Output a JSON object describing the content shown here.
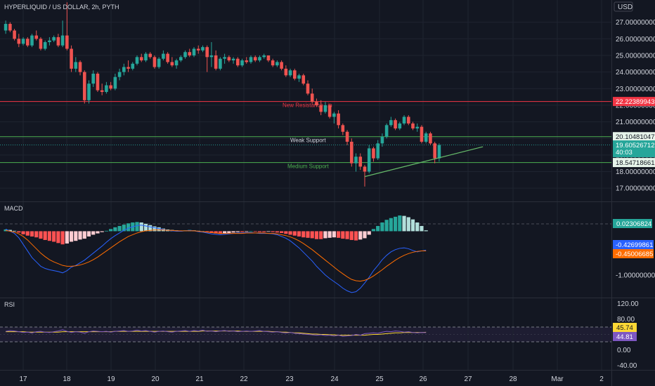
{
  "header": {
    "symbol_title": "HYPERLIQUID / US DOLLAR, 2h, PYTH",
    "currency": "USD"
  },
  "colors": {
    "background": "#131722",
    "up": "#26a69a",
    "down": "#ef5350",
    "grid": "#1f2430",
    "resistance": "#f23645",
    "support": "#4caf50",
    "trendline": "#66bb6a",
    "macd_line": "#2962ff",
    "signal_line": "#ff6d00",
    "rsi_line": "#7e57c2",
    "rsi_ma": "#fdd835"
  },
  "price_axis": {
    "ticks": [
      "27.00000000",
      "26.00000000",
      "25.00000000",
      "24.00000000",
      "23.00000000",
      "22.00000000",
      "21.00000000",
      "20.00000000",
      "19.00000000",
      "18.00000000",
      "17.00000000"
    ],
    "range": [
      16.5,
      28.0
    ]
  },
  "levels": {
    "resistance": {
      "label": "New Resistance Lin",
      "value": 22.22389943,
      "tag": "22.22389943"
    },
    "weak_support": {
      "label": "Weak Support",
      "value": 20.10481047,
      "tag": "20.10481047"
    },
    "medium_support": {
      "label": "Medium Support",
      "value": 18.54718661,
      "tag": "18.54718661"
    },
    "last_price": {
      "value": 19.60526712,
      "tag": "19.60526712",
      "countdown": "40:03"
    }
  },
  "macd": {
    "title": "MACD",
    "ticks": [
      "-1.00000000"
    ],
    "histogram_tag": "0.02306824",
    "macd_tag": "-0.42699861",
    "signal_tag": "-0.45006685",
    "range": [
      -1.45,
      0.6
    ]
  },
  "rsi": {
    "title": "RSI",
    "ticks": [
      "120.00",
      "80.00",
      "0.00",
      "-40.00"
    ],
    "ma_tag": "45.74",
    "rsi_tag": "44.81",
    "range": [
      -45,
      125
    ],
    "bands": [
      70,
      30
    ]
  },
  "time_axis": {
    "labels": [
      "17",
      "18",
      "19",
      "20",
      "21",
      "22",
      "23",
      "24",
      "25",
      "26",
      "27",
      "28",
      "Mar",
      "2"
    ]
  },
  "chart_data": {
    "type": "candlestick",
    "title": "HYPERLIQUID / US DOLLAR, 2h, PYTH",
    "y_unit": "USD",
    "x_dates": [
      "17",
      "18",
      "19",
      "20",
      "21",
      "22",
      "23",
      "24",
      "25",
      "26",
      "27",
      "28",
      "Mar",
      "2"
    ],
    "ylim": [
      16.5,
      28.0
    ],
    "candles": [
      {
        "o": 26.5,
        "h": 27.1,
        "l": 26.3,
        "c": 26.9
      },
      {
        "o": 26.9,
        "h": 27.0,
        "l": 26.4,
        "c": 26.5
      },
      {
        "o": 26.5,
        "h": 26.6,
        "l": 25.9,
        "c": 26.0
      },
      {
        "o": 26.0,
        "h": 26.3,
        "l": 25.5,
        "c": 25.7
      },
      {
        "o": 25.7,
        "h": 26.1,
        "l": 25.6,
        "c": 26.0
      },
      {
        "o": 26.0,
        "h": 26.1,
        "l": 25.5,
        "c": 25.6
      },
      {
        "o": 25.6,
        "h": 26.3,
        "l": 25.5,
        "c": 26.2
      },
      {
        "o": 26.2,
        "h": 26.5,
        "l": 25.9,
        "c": 26.0
      },
      {
        "o": 26.0,
        "h": 26.1,
        "l": 25.3,
        "c": 25.4
      },
      {
        "o": 25.4,
        "h": 25.9,
        "l": 25.3,
        "c": 25.8
      },
      {
        "o": 25.8,
        "h": 26.1,
        "l": 25.6,
        "c": 25.9
      },
      {
        "o": 25.9,
        "h": 26.2,
        "l": 25.8,
        "c": 26.1
      },
      {
        "o": 26.1,
        "h": 26.3,
        "l": 25.5,
        "c": 25.6
      },
      {
        "o": 25.6,
        "h": 27.1,
        "l": 25.5,
        "c": 26.2
      },
      {
        "o": 26.2,
        "h": 28.2,
        "l": 25.3,
        "c": 25.4
      },
      {
        "o": 25.4,
        "h": 25.6,
        "l": 24.0,
        "c": 24.2
      },
      {
        "o": 24.2,
        "h": 24.9,
        "l": 24.0,
        "c": 24.6
      },
      {
        "o": 24.6,
        "h": 24.7,
        "l": 23.8,
        "c": 24.0
      },
      {
        "o": 24.0,
        "h": 24.1,
        "l": 22.1,
        "c": 22.3
      },
      {
        "o": 22.3,
        "h": 23.5,
        "l": 22.1,
        "c": 23.3
      },
      {
        "o": 23.3,
        "h": 24.1,
        "l": 23.1,
        "c": 23.9
      },
      {
        "o": 23.9,
        "h": 24.0,
        "l": 22.8,
        "c": 22.9
      },
      {
        "o": 22.9,
        "h": 23.3,
        "l": 22.6,
        "c": 22.8
      },
      {
        "o": 22.8,
        "h": 23.4,
        "l": 22.7,
        "c": 23.2
      },
      {
        "o": 23.2,
        "h": 23.4,
        "l": 22.9,
        "c": 23.0
      },
      {
        "o": 23.0,
        "h": 23.9,
        "l": 22.9,
        "c": 23.7
      },
      {
        "o": 23.7,
        "h": 24.2,
        "l": 23.5,
        "c": 24.0
      },
      {
        "o": 24.0,
        "h": 24.5,
        "l": 23.8,
        "c": 24.3
      },
      {
        "o": 24.3,
        "h": 24.7,
        "l": 24.0,
        "c": 24.2
      },
      {
        "o": 24.2,
        "h": 24.6,
        "l": 24.1,
        "c": 24.5
      },
      {
        "o": 24.5,
        "h": 25.0,
        "l": 24.4,
        "c": 24.9
      },
      {
        "o": 24.9,
        "h": 25.1,
        "l": 24.6,
        "c": 24.7
      },
      {
        "o": 24.7,
        "h": 25.2,
        "l": 24.6,
        "c": 25.1
      },
      {
        "o": 25.1,
        "h": 25.2,
        "l": 24.8,
        "c": 24.9
      },
      {
        "o": 24.9,
        "h": 25.0,
        "l": 24.2,
        "c": 24.3
      },
      {
        "o": 24.3,
        "h": 24.9,
        "l": 24.2,
        "c": 24.8
      },
      {
        "o": 24.8,
        "h": 25.3,
        "l": 24.7,
        "c": 25.1
      },
      {
        "o": 25.1,
        "h": 25.2,
        "l": 24.5,
        "c": 24.6
      },
      {
        "o": 24.6,
        "h": 24.9,
        "l": 24.3,
        "c": 24.4
      },
      {
        "o": 24.4,
        "h": 24.8,
        "l": 24.2,
        "c": 24.7
      },
      {
        "o": 24.7,
        "h": 25.0,
        "l": 24.6,
        "c": 24.9
      },
      {
        "o": 24.9,
        "h": 25.3,
        "l": 24.8,
        "c": 25.2
      },
      {
        "o": 25.2,
        "h": 25.4,
        "l": 24.9,
        "c": 25.0
      },
      {
        "o": 25.0,
        "h": 25.5,
        "l": 24.9,
        "c": 25.4
      },
      {
        "o": 25.4,
        "h": 25.6,
        "l": 25.1,
        "c": 25.3
      },
      {
        "o": 25.3,
        "h": 25.6,
        "l": 25.2,
        "c": 25.5
      },
      {
        "o": 25.5,
        "h": 25.6,
        "l": 24.0,
        "c": 24.9
      },
      {
        "o": 24.9,
        "h": 25.8,
        "l": 24.3,
        "c": 25.0
      },
      {
        "o": 25.0,
        "h": 25.3,
        "l": 24.1,
        "c": 24.2
      },
      {
        "o": 24.2,
        "h": 24.9,
        "l": 24.1,
        "c": 24.8
      },
      {
        "o": 24.8,
        "h": 25.1,
        "l": 24.5,
        "c": 24.9
      },
      {
        "o": 24.9,
        "h": 25.0,
        "l": 24.6,
        "c": 24.7
      },
      {
        "o": 24.7,
        "h": 24.9,
        "l": 24.5,
        "c": 24.8
      },
      {
        "o": 24.8,
        "h": 24.9,
        "l": 24.3,
        "c": 24.4
      },
      {
        "o": 24.4,
        "h": 24.8,
        "l": 24.3,
        "c": 24.7
      },
      {
        "o": 24.7,
        "h": 24.9,
        "l": 24.5,
        "c": 24.6
      },
      {
        "o": 24.6,
        "h": 25.0,
        "l": 24.5,
        "c": 24.9
      },
      {
        "o": 24.9,
        "h": 25.0,
        "l": 24.6,
        "c": 24.7
      },
      {
        "o": 24.7,
        "h": 25.0,
        "l": 24.6,
        "c": 24.9
      },
      {
        "o": 24.9,
        "h": 25.1,
        "l": 24.8,
        "c": 25.0
      },
      {
        "o": 25.0,
        "h": 25.0,
        "l": 24.6,
        "c": 24.7
      },
      {
        "o": 24.7,
        "h": 24.8,
        "l": 24.3,
        "c": 24.4
      },
      {
        "o": 24.4,
        "h": 24.7,
        "l": 24.3,
        "c": 24.6
      },
      {
        "o": 24.6,
        "h": 24.7,
        "l": 24.1,
        "c": 24.2
      },
      {
        "o": 24.2,
        "h": 24.4,
        "l": 23.7,
        "c": 23.8
      },
      {
        "o": 23.8,
        "h": 24.2,
        "l": 23.7,
        "c": 24.1
      },
      {
        "o": 24.1,
        "h": 24.2,
        "l": 23.5,
        "c": 23.6
      },
      {
        "o": 23.6,
        "h": 23.9,
        "l": 23.4,
        "c": 23.8
      },
      {
        "o": 23.8,
        "h": 23.9,
        "l": 23.2,
        "c": 23.3
      },
      {
        "o": 23.3,
        "h": 23.5,
        "l": 22.6,
        "c": 22.7
      },
      {
        "o": 22.7,
        "h": 23.0,
        "l": 22.1,
        "c": 22.2
      },
      {
        "o": 22.2,
        "h": 22.4,
        "l": 21.9,
        "c": 22.0
      },
      {
        "o": 22.0,
        "h": 22.3,
        "l": 21.4,
        "c": 21.6
      },
      {
        "o": 21.6,
        "h": 22.2,
        "l": 21.5,
        "c": 22.0
      },
      {
        "o": 22.0,
        "h": 22.1,
        "l": 21.2,
        "c": 21.3
      },
      {
        "o": 21.3,
        "h": 21.6,
        "l": 20.9,
        "c": 21.5
      },
      {
        "o": 21.5,
        "h": 21.7,
        "l": 20.6,
        "c": 20.8
      },
      {
        "o": 20.8,
        "h": 20.9,
        "l": 20.2,
        "c": 20.4
      },
      {
        "o": 20.4,
        "h": 20.5,
        "l": 19.6,
        "c": 19.8
      },
      {
        "o": 19.8,
        "h": 20.0,
        "l": 18.3,
        "c": 18.5
      },
      {
        "o": 18.5,
        "h": 19.1,
        "l": 18.0,
        "c": 18.9
      },
      {
        "o": 18.9,
        "h": 19.1,
        "l": 18.1,
        "c": 18.3
      },
      {
        "o": 18.3,
        "h": 18.4,
        "l": 17.1,
        "c": 18.0
      },
      {
        "o": 18.0,
        "h": 19.6,
        "l": 17.9,
        "c": 19.4
      },
      {
        "o": 19.4,
        "h": 19.5,
        "l": 18.6,
        "c": 18.8
      },
      {
        "o": 18.8,
        "h": 19.9,
        "l": 18.7,
        "c": 19.7
      },
      {
        "o": 19.7,
        "h": 20.3,
        "l": 19.5,
        "c": 20.1
      },
      {
        "o": 20.1,
        "h": 20.9,
        "l": 20.0,
        "c": 20.8
      },
      {
        "o": 20.8,
        "h": 21.3,
        "l": 20.7,
        "c": 21.1
      },
      {
        "o": 21.1,
        "h": 21.2,
        "l": 20.5,
        "c": 20.6
      },
      {
        "o": 20.6,
        "h": 21.0,
        "l": 20.5,
        "c": 20.9
      },
      {
        "o": 20.9,
        "h": 21.4,
        "l": 20.8,
        "c": 21.3
      },
      {
        "o": 21.3,
        "h": 21.4,
        "l": 20.8,
        "c": 20.9
      },
      {
        "o": 20.9,
        "h": 21.0,
        "l": 20.5,
        "c": 20.6
      },
      {
        "o": 20.6,
        "h": 20.9,
        "l": 20.4,
        "c": 20.7
      },
      {
        "o": 20.7,
        "h": 20.8,
        "l": 19.7,
        "c": 19.8
      },
      {
        "o": 19.8,
        "h": 20.4,
        "l": 19.7,
        "c": 20.3
      },
      {
        "o": 20.3,
        "h": 20.4,
        "l": 19.6,
        "c": 19.7
      },
      {
        "o": 19.7,
        "h": 19.8,
        "l": 18.5,
        "c": 18.8
      },
      {
        "o": 18.8,
        "h": 19.7,
        "l": 18.6,
        "c": 19.6
      }
    ],
    "trendline": [
      [
        82,
        17.7
      ],
      [
        109,
        19.5
      ]
    ],
    "macd_histogram": [
      0.04,
      0.03,
      0.01,
      -0.03,
      -0.07,
      -0.1,
      -0.12,
      -0.14,
      -0.17,
      -0.2,
      -0.22,
      -0.24,
      -0.27,
      -0.3,
      -0.28,
      -0.24,
      -0.22,
      -0.19,
      -0.17,
      -0.12,
      -0.08,
      -0.05,
      -0.02,
      0.01,
      0.05,
      0.09,
      0.12,
      0.15,
      0.18,
      0.2,
      0.21,
      0.2,
      0.17,
      0.14,
      0.11,
      0.09,
      0.06,
      0.04,
      0.03,
      0.02,
      0.01,
      0.02,
      0.03,
      0.02,
      0.01,
      0.0,
      -0.02,
      -0.04,
      -0.05,
      -0.06,
      -0.05,
      -0.04,
      -0.03,
      -0.02,
      -0.02,
      -0.01,
      0.0,
      -0.01,
      -0.02,
      -0.02,
      -0.01,
      -0.02,
      -0.03,
      -0.04,
      -0.06,
      -0.08,
      -0.1,
      -0.12,
      -0.14,
      -0.15,
      -0.16,
      -0.18,
      -0.18,
      -0.16,
      -0.15,
      -0.14,
      -0.15,
      -0.17,
      -0.18,
      -0.2,
      -0.21,
      -0.19,
      -0.16,
      -0.08,
      0.05,
      0.12,
      0.2,
      0.26,
      0.3,
      0.33,
      0.36,
      0.35,
      0.32,
      0.27,
      0.2,
      0.12,
      0.02
    ],
    "macd_line": [
      0.05,
      0.0,
      -0.05,
      -0.15,
      -0.3,
      -0.45,
      -0.6,
      -0.7,
      -0.8,
      -0.85,
      -0.88,
      -0.9,
      -0.92,
      -0.95,
      -0.9,
      -0.82,
      -0.78,
      -0.72,
      -0.66,
      -0.58,
      -0.5,
      -0.42,
      -0.34,
      -0.25,
      -0.17,
      -0.1,
      -0.04,
      0.02,
      0.07,
      0.1,
      0.13,
      0.14,
      0.12,
      0.1,
      0.08,
      0.06,
      0.04,
      0.02,
      0.01,
      0.0,
      0.0,
      0.01,
      0.02,
      0.01,
      -0.01,
      -0.02,
      -0.04,
      -0.06,
      -0.07,
      -0.08,
      -0.07,
      -0.06,
      -0.05,
      -0.04,
      -0.04,
      -0.03,
      -0.03,
      -0.04,
      -0.05,
      -0.05,
      -0.05,
      -0.06,
      -0.08,
      -0.12,
      -0.16,
      -0.22,
      -0.3,
      -0.38,
      -0.48,
      -0.58,
      -0.68,
      -0.8,
      -0.9,
      -1.0,
      -1.08,
      -1.15,
      -1.22,
      -1.3,
      -1.36,
      -1.4,
      -1.38,
      -1.3,
      -1.18,
      -1.05,
      -0.9,
      -0.78,
      -0.65,
      -0.55,
      -0.47,
      -0.42,
      -0.39,
      -0.38,
      -0.4,
      -0.44,
      -0.47,
      -0.45,
      -0.43
    ],
    "signal_line": [
      0.02,
      0.0,
      -0.02,
      -0.06,
      -0.12,
      -0.2,
      -0.3,
      -0.4,
      -0.5,
      -0.58,
      -0.65,
      -0.7,
      -0.74,
      -0.78,
      -0.8,
      -0.8,
      -0.79,
      -0.77,
      -0.74,
      -0.7,
      -0.65,
      -0.59,
      -0.52,
      -0.45,
      -0.38,
      -0.31,
      -0.24,
      -0.18,
      -0.12,
      -0.08,
      -0.04,
      -0.01,
      0.01,
      0.02,
      0.03,
      0.03,
      0.03,
      0.02,
      0.02,
      0.01,
      0.01,
      0.01,
      0.01,
      0.01,
      0.0,
      -0.01,
      -0.02,
      -0.03,
      -0.04,
      -0.05,
      -0.05,
      -0.05,
      -0.05,
      -0.05,
      -0.05,
      -0.04,
      -0.04,
      -0.04,
      -0.04,
      -0.04,
      -0.05,
      -0.05,
      -0.06,
      -0.08,
      -0.1,
      -0.13,
      -0.17,
      -0.22,
      -0.28,
      -0.35,
      -0.42,
      -0.5,
      -0.58,
      -0.66,
      -0.74,
      -0.82,
      -0.9,
      -0.97,
      -1.04,
      -1.1,
      -1.13,
      -1.14,
      -1.12,
      -1.08,
      -1.02,
      -0.95,
      -0.88,
      -0.8,
      -0.73,
      -0.66,
      -0.6,
      -0.55,
      -0.51,
      -0.48,
      -0.46,
      -0.45,
      -0.45
    ],
    "rsi_line": [
      48,
      50,
      49,
      47,
      45,
      46,
      44,
      47,
      48,
      46,
      45,
      47,
      49,
      52,
      48,
      45,
      47,
      46,
      43,
      47,
      49,
      48,
      47,
      48,
      46,
      48,
      49,
      50,
      48,
      49,
      51,
      49,
      50,
      48,
      46,
      48,
      49,
      47,
      46,
      48,
      49,
      50,
      48,
      50,
      49,
      51,
      48,
      49,
      47,
      49,
      50,
      48,
      49,
      47,
      48,
      49,
      48,
      49,
      50,
      48,
      47,
      46,
      47,
      45,
      44,
      45,
      43,
      42,
      41,
      40,
      39,
      38,
      39,
      37,
      38,
      36,
      38,
      35,
      36,
      37,
      40,
      38,
      42,
      43,
      44,
      43,
      46,
      48,
      47,
      49,
      48,
      46,
      47,
      45,
      44,
      45,
      44.81
    ],
    "rsi_ma": [
      47,
      47,
      47,
      47,
      47,
      46,
      46,
      46,
      46,
      46,
      46,
      46,
      46,
      47,
      47,
      47,
      47,
      47,
      47,
      47,
      47,
      47,
      47,
      47,
      47,
      48,
      48,
      48,
      48,
      48,
      48,
      48,
      48,
      48,
      48,
      48,
      48,
      48,
      48,
      48,
      48,
      48,
      48,
      48,
      48,
      49,
      49,
      49,
      49,
      49,
      49,
      49,
      49,
      49,
      48,
      48,
      48,
      48,
      48,
      48,
      48,
      47,
      47,
      46,
      46,
      45,
      44,
      44,
      43,
      42,
      41,
      41,
      40,
      40,
      39,
      39,
      38,
      38,
      38,
      38,
      38,
      38,
      38,
      39,
      40,
      40,
      41,
      42,
      43,
      44,
      44,
      45,
      45,
      45,
      45,
      45,
      45.74
    ]
  }
}
